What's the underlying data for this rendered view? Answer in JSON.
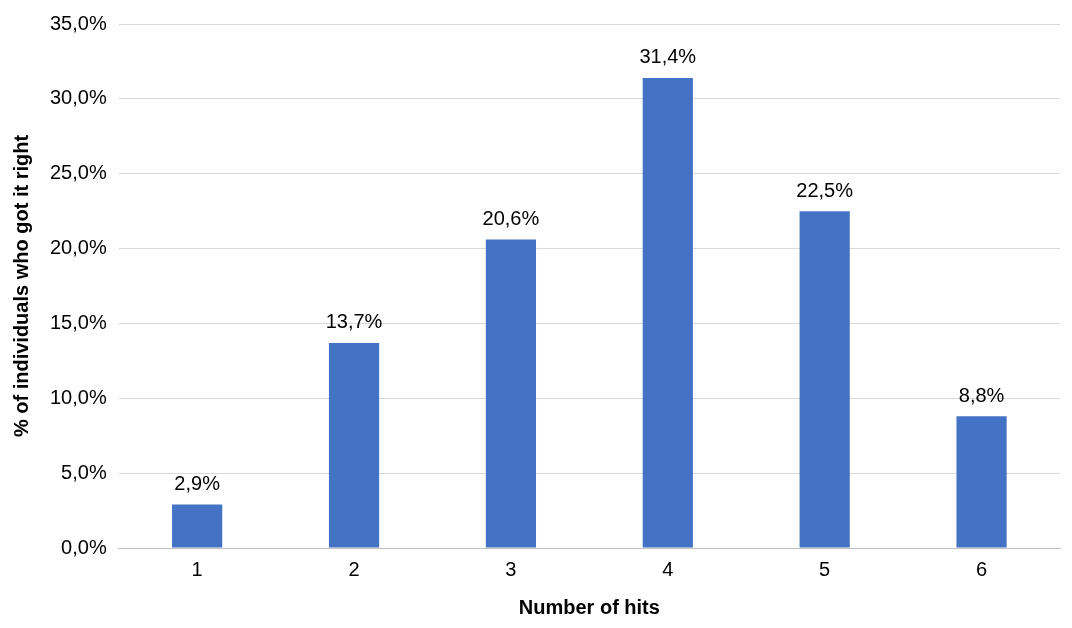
{
  "chart_data": {
    "type": "bar",
    "xlabel": "Number of hits",
    "ylabel": "% of individuals who got it right",
    "categories": [
      "1",
      "2",
      "3",
      "4",
      "5",
      "6"
    ],
    "values": [
      2.9,
      13.7,
      20.6,
      31.4,
      22.5,
      8.8
    ],
    "value_labels": [
      "2,9%",
      "13,7%",
      "20,6%",
      "31,4%",
      "22,5%",
      "8,8%"
    ],
    "color": "#4472c4",
    "ylim": [
      0,
      35
    ],
    "yticks": [
      {
        "value": 0,
        "label": "0,0%"
      },
      {
        "value": 5,
        "label": "5,0%"
      },
      {
        "value": 10,
        "label": "10,0%"
      },
      {
        "value": 15,
        "label": "15,0%"
      },
      {
        "value": 20,
        "label": "20,0%"
      },
      {
        "value": 25,
        "label": "25,0%"
      },
      {
        "value": 30,
        "label": "30,0%"
      },
      {
        "value": 35,
        "label": "35,0%"
      }
    ],
    "grid": "y",
    "legend": false
  }
}
